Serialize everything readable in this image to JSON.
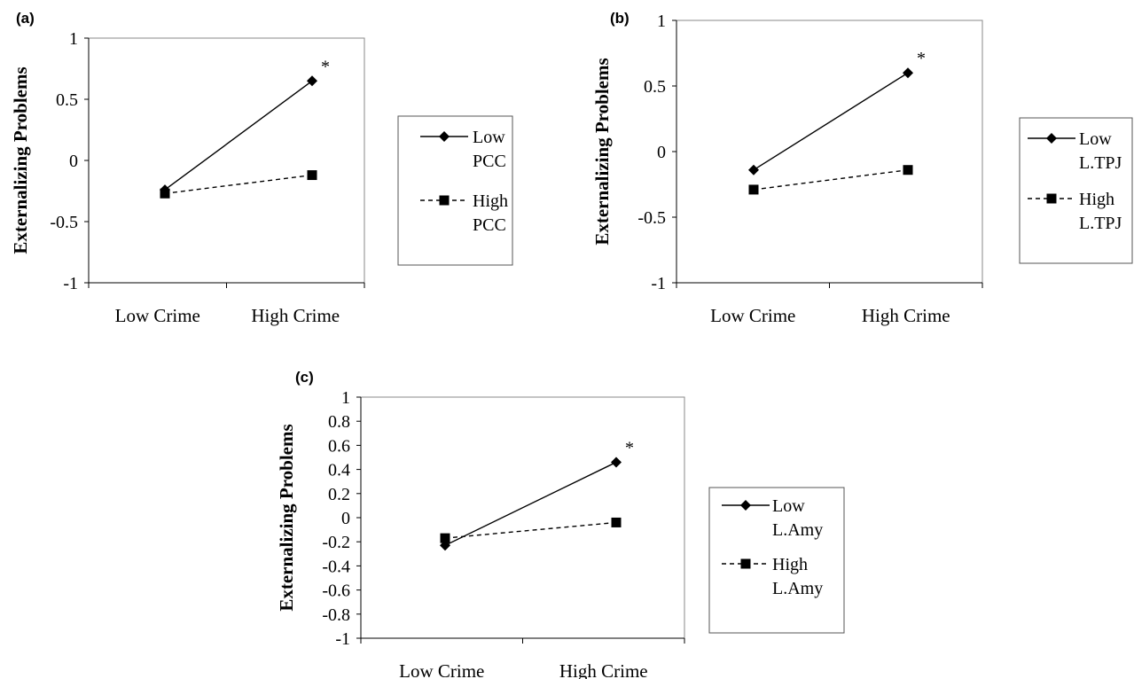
{
  "chart_data": [
    {
      "panel_label": "(a)",
      "type": "line",
      "ylabel": "Externalizing Problems",
      "categories": [
        "Low Crime",
        "High Crime"
      ],
      "ylim": [
        -1,
        1
      ],
      "yticks": [
        -1,
        -0.5,
        0,
        0.5,
        1
      ],
      "ytick_labels": [
        "-1",
        "-0.5",
        "0",
        "0.5",
        "1"
      ],
      "series": [
        {
          "name": "Low PCC",
          "name_lines": [
            "Low",
            "PCC"
          ],
          "values": [
            -0.24,
            0.65
          ],
          "marker": "diamond",
          "line_style": "solid"
        },
        {
          "name": "High PCC",
          "name_lines": [
            "High",
            "PCC"
          ],
          "values": [
            -0.27,
            -0.12
          ],
          "marker": "square",
          "line_style": "dashed"
        }
      ],
      "annotations": [
        {
          "text": "*",
          "series": 0,
          "index": 1
        }
      ]
    },
    {
      "panel_label": "(b)",
      "type": "line",
      "ylabel": "Externalizing Problems",
      "categories": [
        "Low Crime",
        "High Crime"
      ],
      "ylim": [
        -1,
        1
      ],
      "yticks": [
        -1,
        -0.5,
        0,
        0.5,
        1
      ],
      "ytick_labels": [
        "-1",
        "-0.5",
        "0",
        "0.5",
        "1"
      ],
      "series": [
        {
          "name": "Low L.TPJ",
          "name_lines": [
            "Low",
            "L.TPJ"
          ],
          "values": [
            -0.14,
            0.6
          ],
          "marker": "diamond",
          "line_style": "solid"
        },
        {
          "name": "High L.TPJ",
          "name_lines": [
            "High",
            "L.TPJ"
          ],
          "values": [
            -0.29,
            -0.14
          ],
          "marker": "square",
          "line_style": "dashed"
        }
      ],
      "annotations": [
        {
          "text": "*",
          "series": 0,
          "index": 1
        }
      ]
    },
    {
      "panel_label": "(c)",
      "type": "line",
      "ylabel": "Externalizing Problems",
      "categories": [
        "Low Crime",
        "High Crime"
      ],
      "ylim": [
        -1,
        1
      ],
      "yticks": [
        -1,
        -0.8,
        -0.6,
        -0.4,
        -0.2,
        0,
        0.2,
        0.4,
        0.6,
        0.8,
        1
      ],
      "ytick_labels": [
        "-1",
        "-0.8",
        "-0.6",
        "-0.4",
        "-0.2",
        "0",
        "0.2",
        "0.4",
        "0.6",
        "0.8",
        "1"
      ],
      "series": [
        {
          "name": "Low L.Amy",
          "name_lines": [
            "Low",
            "L.Amy"
          ],
          "values": [
            -0.23,
            0.46
          ],
          "marker": "diamond",
          "line_style": "solid"
        },
        {
          "name": "High L.Amy",
          "name_lines": [
            "High",
            "L.Amy"
          ],
          "values": [
            -0.17,
            -0.04
          ],
          "marker": "square",
          "line_style": "dashed"
        }
      ],
      "annotations": [
        {
          "text": "*",
          "series": 0,
          "index": 1
        }
      ]
    }
  ]
}
